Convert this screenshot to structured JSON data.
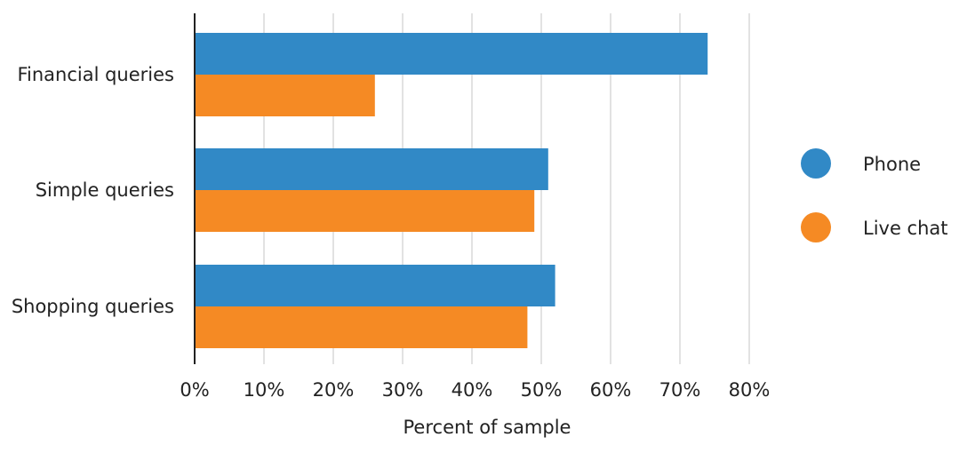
{
  "chart_data": {
    "type": "bar",
    "orientation": "horizontal",
    "categories": [
      "Financial queries",
      "Simple queries",
      "Shopping queries"
    ],
    "series": [
      {
        "name": "Phone",
        "values": [
          74,
          51,
          52
        ],
        "color": "#3189c6"
      },
      {
        "name": "Live chat",
        "values": [
          26,
          49,
          48
        ],
        "color": "#f58a24"
      }
    ],
    "x_ticks": [
      "0%",
      "10%",
      "20%",
      "30%",
      "40%",
      "50%",
      "60%",
      "70%",
      "80%"
    ],
    "xlim": [
      0,
      80
    ],
    "xlabel": "Percent of sample",
    "ylabel": "",
    "title": "",
    "grid": true,
    "legend_position": "right"
  }
}
